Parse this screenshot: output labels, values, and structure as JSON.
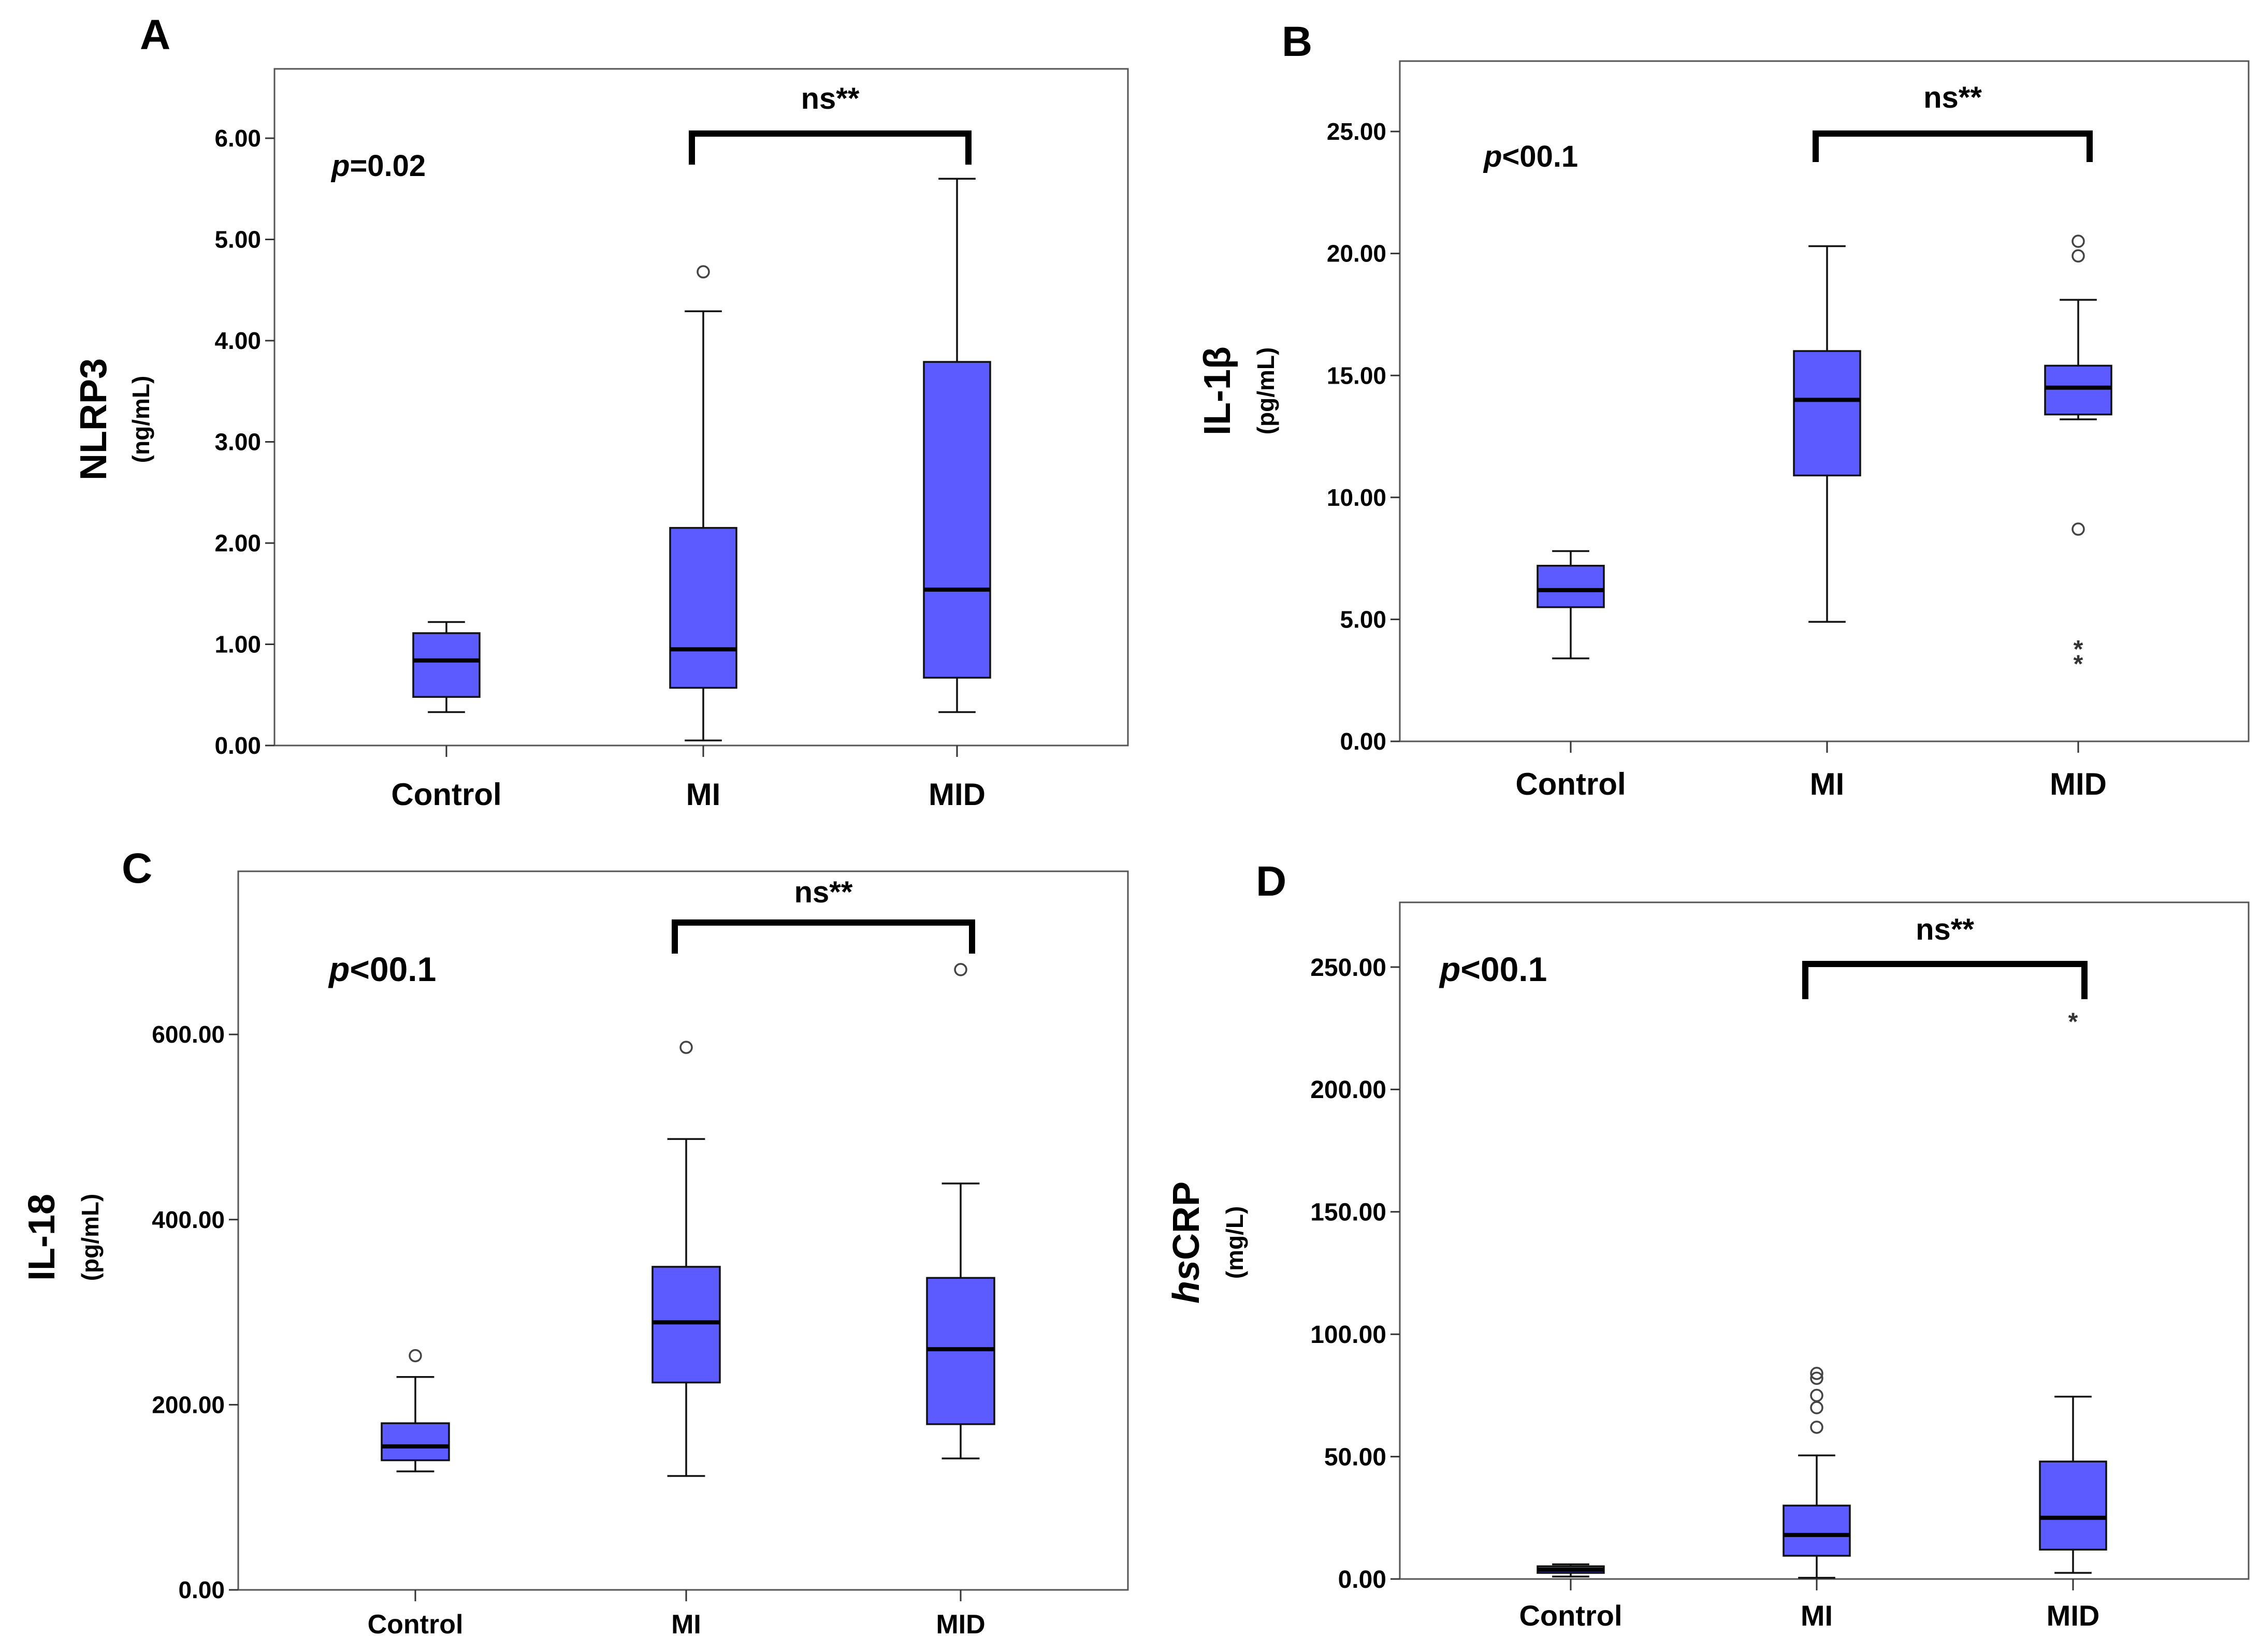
{
  "chart_data": [
    {
      "type": "box",
      "panel_letter": "A",
      "ylabel": "NLRP3",
      "yunit": "(ng/mL)",
      "ylim": [
        0,
        6.6
      ],
      "yticks": [
        "0.00",
        "1.00",
        "2.00",
        "3.00",
        "4.00",
        "5.00",
        "6.00"
      ],
      "categories": [
        "Control",
        "MI",
        "MID"
      ],
      "pvalue": {
        "italic": "p",
        "rest": "=0.02"
      },
      "bracket": {
        "from": "MI",
        "to": "MID",
        "label": "ns**"
      },
      "colors": {
        "box": "#5b5bff"
      },
      "boxes": [
        {
          "category": "Control",
          "whisker_low": 0.33,
          "q1": 0.48,
          "median": 0.84,
          "q3": 1.11,
          "whisker_high": 1.22,
          "outliers": [],
          "extremes": []
        },
        {
          "category": "MI",
          "whisker_low": 0.05,
          "q1": 0.57,
          "median": 0.95,
          "q3": 2.15,
          "whisker_high": 4.29,
          "outliers": [
            4.68
          ],
          "extremes": []
        },
        {
          "category": "MID",
          "whisker_low": 0.33,
          "q1": 0.67,
          "median": 1.54,
          "q3": 3.79,
          "whisker_high": 5.6,
          "outliers": [],
          "extremes": []
        }
      ]
    },
    {
      "type": "box",
      "panel_letter": "B",
      "ylabel": "IL-1β",
      "yunit": "(pg/mL)",
      "ylim": [
        0,
        27
      ],
      "yticks": [
        "0.00",
        "5.00",
        "10.00",
        "15.00",
        "20.00",
        "25.00"
      ],
      "categories": [
        "Control",
        "MI",
        "MID"
      ],
      "pvalue": {
        "italic": "p",
        "rest": "<00.1"
      },
      "bracket": {
        "from": "MI",
        "to": "MID",
        "label": "ns**"
      },
      "colors": {
        "box": "#5b5bff"
      },
      "boxes": [
        {
          "category": "Control",
          "whisker_low": 3.4,
          "q1": 5.5,
          "median": 6.2,
          "q3": 7.2,
          "whisker_high": 7.8,
          "outliers": [],
          "extremes": []
        },
        {
          "category": "MI",
          "whisker_low": 4.9,
          "q1": 10.9,
          "median": 14.0,
          "q3": 16.0,
          "whisker_high": 20.3,
          "outliers": [],
          "extremes": []
        },
        {
          "category": "MID",
          "whisker_low": 13.2,
          "q1": 13.4,
          "median": 14.5,
          "q3": 15.4,
          "whisker_high": 18.1,
          "outliers": [
            20.5,
            19.9,
            8.7
          ],
          "extremes": [
            3.9,
            3.3
          ]
        }
      ]
    },
    {
      "type": "box",
      "panel_letter": "C",
      "ylabel": "IL-18",
      "yunit": "(pg/mL)",
      "ylim": [
        0,
        780
      ],
      "yticks": [
        "0.00",
        "200.00",
        "400.00",
        "600.00"
      ],
      "categories": [
        "Control",
        "MI",
        "MID"
      ],
      "pvalue": {
        "italic": "p",
        "rest": "<00.1"
      },
      "bracket": {
        "from": "MI",
        "to": "MID",
        "label": "ns**"
      },
      "colors": {
        "box": "#5b5bff"
      },
      "boxes": [
        {
          "category": "Control",
          "whisker_low": 128,
          "q1": 140,
          "median": 155,
          "q3": 180,
          "whisker_high": 230,
          "outliers": [
            253
          ],
          "extremes": []
        },
        {
          "category": "MI",
          "whisker_low": 123,
          "q1": 224,
          "median": 289,
          "q3": 349,
          "whisker_high": 487,
          "outliers": [
            586
          ],
          "extremes": []
        },
        {
          "category": "MID",
          "whisker_low": 142,
          "q1": 179,
          "median": 260,
          "q3": 337,
          "whisker_high": 439,
          "outliers": [
            670
          ],
          "extremes": []
        }
      ]
    },
    {
      "type": "box",
      "panel_letter": "D",
      "ylabel_italic": "hs",
      "ylabel": "CRP",
      "yunit": "(mg/L)",
      "ylim": [
        0,
        278
      ],
      "yticks": [
        "0.00",
        "50.00",
        "100.00",
        "150.00",
        "200.00",
        "250.00"
      ],
      "categories": [
        "Control",
        "MI",
        "MID"
      ],
      "pvalue": {
        "italic": "p",
        "rest": "<00.1"
      },
      "bracket": {
        "from": "MI",
        "to": "MID",
        "label": "ns**"
      },
      "colors": {
        "box": "#5b5bff"
      },
      "boxes": [
        {
          "category": "Control",
          "whisker_low": 1.0,
          "q1": 2.5,
          "median": 3.8,
          "q3": 5.2,
          "whisker_high": 6.0,
          "outliers": [],
          "extremes": []
        },
        {
          "category": "MI",
          "whisker_low": 0.5,
          "q1": 9.5,
          "median": 18.0,
          "q3": 30.0,
          "whisker_high": 50.5,
          "outliers": [
            62,
            70,
            75,
            82,
            84
          ],
          "extremes": []
        },
        {
          "category": "MID",
          "whisker_low": 2.5,
          "q1": 12.0,
          "median": 25.0,
          "q3": 48.0,
          "whisker_high": 74.5,
          "outliers": [],
          "extremes": [
            229
          ]
        }
      ]
    }
  ]
}
